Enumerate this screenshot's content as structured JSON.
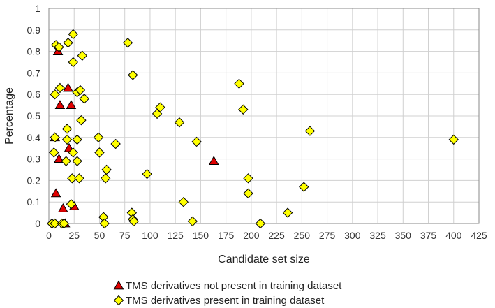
{
  "chart_data": {
    "type": "scatter",
    "title": "",
    "xlabel": "Candidate set size",
    "ylabel": "Percentage",
    "xlim": [
      0,
      425
    ],
    "ylim": [
      0,
      1
    ],
    "xticks": [
      0,
      25,
      50,
      75,
      100,
      125,
      150,
      175,
      200,
      225,
      250,
      275,
      300,
      325,
      350,
      375,
      400,
      425
    ],
    "yticks": [
      0,
      0.1,
      0.2,
      0.3,
      0.4,
      0.5,
      0.6,
      0.7,
      0.8,
      0.9,
      1
    ],
    "ytick_labels": [
      "0",
      "0.1",
      "0.2",
      "0.3",
      "0.4",
      "0.5",
      "0.6",
      "0.7",
      "0.8",
      "0.9",
      "1"
    ],
    "grid": true,
    "legend_position": "bottom",
    "series": [
      {
        "name": "TMS derivatives not present in training dataset",
        "marker": "triangle",
        "color": "#e00000",
        "points": [
          [
            6,
            0.4
          ],
          [
            9,
            0.8
          ],
          [
            10,
            0.3
          ],
          [
            11,
            0.55
          ],
          [
            7,
            0.14
          ],
          [
            14,
            0.07
          ],
          [
            16,
            0
          ],
          [
            19,
            0.63
          ],
          [
            20,
            0.35
          ],
          [
            22,
            0.55
          ],
          [
            25,
            0.08
          ],
          [
            163,
            0.29
          ]
        ]
      },
      {
        "name": "TMS derivatives present in training dataset",
        "marker": "diamond",
        "color": "#ffff00",
        "points": [
          [
            3,
            0
          ],
          [
            5,
            0.33
          ],
          [
            6,
            0
          ],
          [
            6,
            0.4
          ],
          [
            6,
            0.6
          ],
          [
            7,
            0.83
          ],
          [
            10,
            0.82
          ],
          [
            11,
            0.63
          ],
          [
            13,
            0
          ],
          [
            15,
            0
          ],
          [
            17,
            0.29
          ],
          [
            18,
            0.44
          ],
          [
            18,
            0.39
          ],
          [
            19,
            0.84
          ],
          [
            22,
            0.09
          ],
          [
            23,
            0.21
          ],
          [
            24,
            0.75
          ],
          [
            24,
            0.33
          ],
          [
            24,
            0.88
          ],
          [
            28,
            0.29
          ],
          [
            28,
            0.39
          ],
          [
            28,
            0.61
          ],
          [
            30,
            0.21
          ],
          [
            31,
            0.62
          ],
          [
            32,
            0.48
          ],
          [
            33,
            0.78
          ],
          [
            35,
            0.58
          ],
          [
            49,
            0.4
          ],
          [
            50,
            0.33
          ],
          [
            54,
            0.03
          ],
          [
            55,
            0
          ],
          [
            56,
            0.21
          ],
          [
            57,
            0.25
          ],
          [
            66,
            0.37
          ],
          [
            78,
            0.84
          ],
          [
            82,
            0.05
          ],
          [
            83,
            0.69
          ],
          [
            83,
            0.02
          ],
          [
            84,
            0.01
          ],
          [
            97,
            0.23
          ],
          [
            107,
            0.51
          ],
          [
            110,
            0.54
          ],
          [
            129,
            0.47
          ],
          [
            133,
            0.1
          ],
          [
            142,
            0.01
          ],
          [
            146,
            0.38
          ],
          [
            188,
            0.65
          ],
          [
            192,
            0.53
          ],
          [
            197,
            0.21
          ],
          [
            197,
            0.14
          ],
          [
            209,
            0
          ],
          [
            236,
            0.05
          ],
          [
            252,
            0.17
          ],
          [
            258,
            0.43
          ],
          [
            400,
            0.39
          ]
        ]
      }
    ]
  }
}
